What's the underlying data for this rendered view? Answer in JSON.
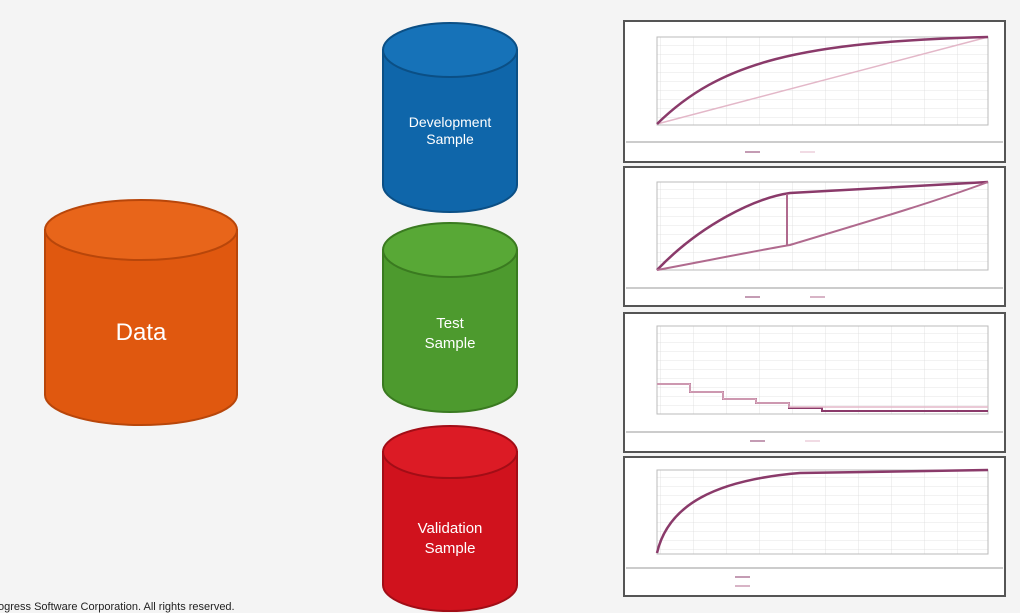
{
  "nodes": [
    {
      "lines": [
        "Data"
      ]
    },
    {
      "lines": [
        "Development",
        "Sample"
      ]
    },
    {
      "lines": [
        "Test",
        "Sample"
      ]
    },
    {
      "lines": [
        "Validation",
        "Sample"
      ]
    }
  ],
  "footer": "ogress Software Corporation. All rights reserved."
}
